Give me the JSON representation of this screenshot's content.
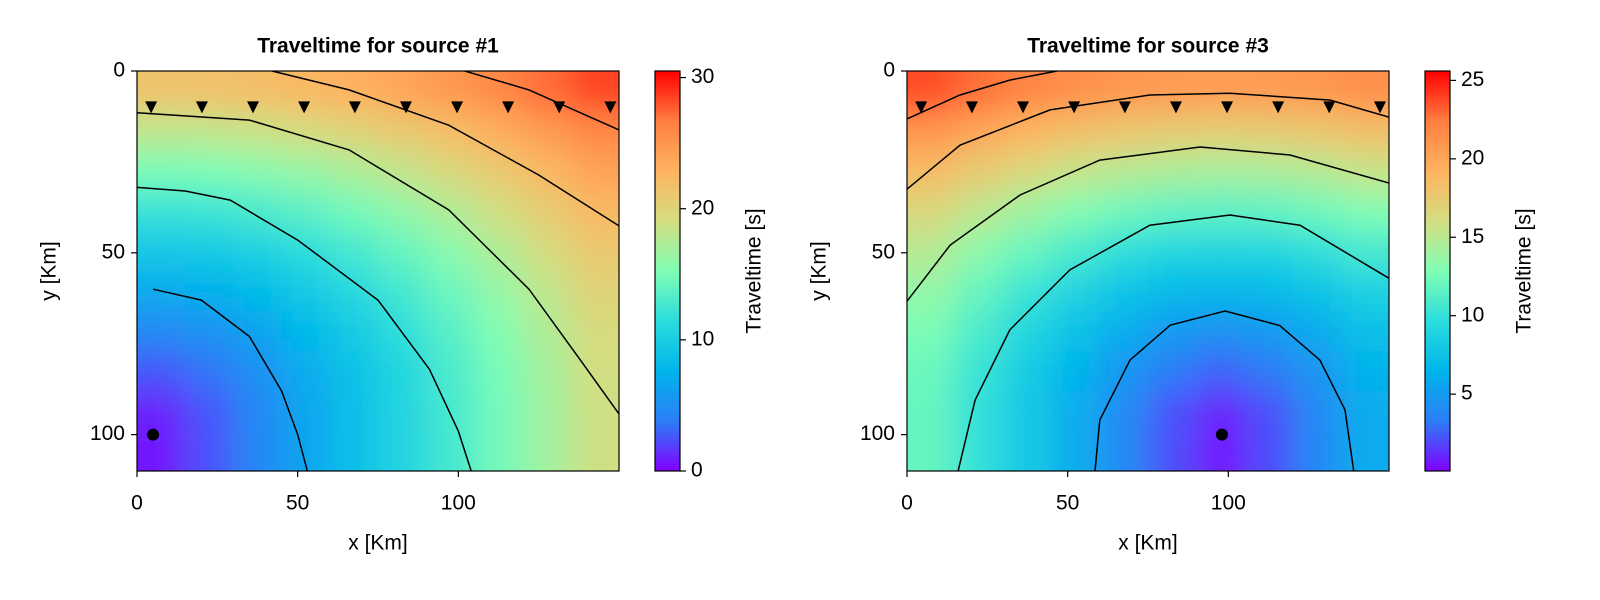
{
  "chart_data": [
    {
      "type": "heatmap",
      "title": "Traveltime for source #1",
      "xlabel": "x [Km]",
      "ylabel": "y [Km]",
      "colorbar_label": "Traveltime [s]",
      "xlim": [
        0,
        150
      ],
      "ylim": [
        110,
        0
      ],
      "xticks": [
        0,
        50,
        100
      ],
      "yticks": [
        0,
        50,
        100
      ],
      "clim": [
        0,
        30.5
      ],
      "cticks": [
        0,
        10,
        20,
        30
      ],
      "colormap": [
        "#8000ff",
        "#2c7ef7",
        "#00b5eb",
        "#2adddd",
        "#80ffb4",
        "#d4dd80",
        "#ffb360",
        "#ff7e41",
        "#ff0000"
      ],
      "x": [
        7.5,
        22.5,
        37.5,
        52.5,
        67.5,
        82.5,
        97.5,
        112.5,
        127.5,
        142.5
      ],
      "y": [
        5.5,
        16.5,
        27.5,
        38.5,
        49.5,
        60.5,
        71.5,
        82.5,
        93.5,
        104.5
      ],
      "z": [
        [
          21.4,
          21.6,
          21.9,
          22.4,
          23.1,
          23.9,
          24.9,
          26.0,
          27.2,
          28.5
        ],
        [
          18.1,
          18.2,
          18.6,
          19.2,
          20.0,
          20.9,
          22.0,
          23.3,
          24.6,
          26.0
        ],
        [
          14.9,
          15.1,
          15.6,
          16.3,
          17.2,
          18.3,
          19.5,
          20.9,
          22.4,
          24.0
        ],
        [
          12.0,
          12.2,
          12.8,
          13.7,
          14.7,
          16.0,
          17.4,
          19.0,
          20.6,
          22.3
        ],
        [
          9.3,
          9.6,
          10.3,
          11.4,
          12.7,
          14.1,
          15.7,
          17.4,
          19.2,
          21.0
        ],
        [
          6.9,
          7.3,
          8.2,
          9.5,
          11.0,
          12.6,
          14.4,
          16.2,
          18.1,
          20.0
        ],
        [
          4.7,
          5.2,
          6.4,
          8.0,
          9.7,
          11.6,
          13.5,
          15.4,
          17.4,
          19.3
        ],
        [
          2.7,
          3.6,
          5.2,
          7.0,
          8.9,
          10.9,
          12.9,
          14.9,
          16.9,
          19.0
        ],
        [
          1.0,
          2.6,
          4.5,
          6.6,
          8.6,
          10.6,
          12.7,
          14.7,
          16.7,
          18.8
        ],
        [
          0.7,
          2.5,
          4.5,
          6.5,
          8.6,
          10.6,
          12.6,
          14.7,
          16.7,
          18.8
        ]
      ],
      "contours": [
        {
          "x": [
            5,
            20,
            35,
            45,
            50,
            53
          ],
          "y": [
            60,
            63,
            73,
            88,
            100,
            110
          ]
        },
        {
          "x": [
            0,
            15,
            29,
            50,
            75,
            91,
            100,
            104
          ],
          "y": [
            32,
            33,
            35.5,
            46.5,
            63,
            82,
            99,
            110
          ]
        },
        {
          "x": [
            0,
            35,
            66,
            97,
            122,
            138,
            150
          ],
          "y": [
            11.5,
            13.5,
            21.7,
            38.2,
            60,
            79.5,
            94.3
          ]
        },
        {
          "x": [
            42,
            66,
            97,
            125,
            150
          ],
          "y": [
            0,
            5.2,
            14.9,
            28.6,
            42.6
          ]
        },
        {
          "x": [
            102,
            122,
            150
          ],
          "y": [
            0,
            5.2,
            16.2
          ]
        }
      ],
      "receivers": {
        "x": [
          4.4,
          20.2,
          36.1,
          52,
          67.8,
          83.7,
          99.6,
          115.5,
          131.4,
          147.3
        ],
        "y": [
          10,
          10,
          10,
          10,
          10,
          10,
          10,
          10,
          10,
          10
        ]
      },
      "source": {
        "x": 5,
        "y": 100
      }
    },
    {
      "type": "heatmap",
      "title": "Traveltime for source #3",
      "xlabel": "x [Km]",
      "ylabel": "y [Km]",
      "colorbar_label": "Traveltime [s]",
      "xlim": [
        0,
        150
      ],
      "ylim": [
        110,
        0
      ],
      "xticks": [
        0,
        50,
        100
      ],
      "yticks": [
        0,
        50,
        100
      ],
      "clim": [
        0.1,
        25.6
      ],
      "cticks": [
        5,
        10,
        15,
        20,
        25
      ],
      "colormap": [
        "#8000ff",
        "#2c7ef7",
        "#00b5eb",
        "#2adddd",
        "#80ffb4",
        "#d4dd80",
        "#ffb360",
        "#ff7e41",
        "#ff0000"
      ],
      "x": [
        7.5,
        22.5,
        37.5,
        52.5,
        67.5,
        82.5,
        97.5,
        112.5,
        127.5,
        142.5
      ],
      "y": [
        5.5,
        16.5,
        27.5,
        38.5,
        49.5,
        60.5,
        71.5,
        82.5,
        93.5,
        104.5
      ],
      "z": [
        [
          23.7,
          22.8,
          22.0,
          21.4,
          20.9,
          20.7,
          20.6,
          20.7,
          20.9,
          21.4
        ],
        [
          21.0,
          20.0,
          19.1,
          18.3,
          17.8,
          17.4,
          17.3,
          17.4,
          17.8,
          18.3
        ],
        [
          18.6,
          17.4,
          16.4,
          15.5,
          14.9,
          14.5,
          14.3,
          14.4,
          14.8,
          15.5
        ],
        [
          16.5,
          15.2,
          14.0,
          13.0,
          12.2,
          11.7,
          11.5,
          11.7,
          12.2,
          12.9
        ],
        [
          14.9,
          13.3,
          12.0,
          10.8,
          9.8,
          9.2,
          9.0,
          9.2,
          9.8,
          10.7
        ],
        [
          13.6,
          11.9,
          10.3,
          8.9,
          7.7,
          6.9,
          6.6,
          6.9,
          7.7,
          8.8
        ],
        [
          12.7,
          10.9,
          9.1,
          7.5,
          6.0,
          4.9,
          4.5,
          4.9,
          5.9,
          7.3
        ],
        [
          12.1,
          10.2,
          8.3,
          6.5,
          4.7,
          3.3,
          2.6,
          3.2,
          4.6,
          6.4
        ],
        [
          11.9,
          9.9,
          8.0,
          6.0,
          4.1,
          2.2,
          0.9,
          2.1,
          4.0,
          5.9
        ],
        [
          11.9,
          9.9,
          8.0,
          6.0,
          4.0,
          2.1,
          0.6,
          2.0,
          3.9,
          5.9
        ]
      ],
      "contours": [
        {
          "x": [
            58.5,
            60,
            69.4,
            81.9,
            99,
            116,
            128.5,
            136.3,
            139
          ],
          "y": [
            110,
            96,
            79.5,
            69.9,
            66,
            70,
            79.5,
            93.2,
            110
          ]
        },
        {
          "x": [
            15.9,
            21.2,
            32,
            50.7,
            75.6,
            100.5,
            122.3,
            150
          ],
          "y": [
            110,
            90.5,
            71.2,
            54.7,
            42.4,
            39.6,
            42.4,
            57
          ]
        },
        {
          "x": [
            0,
            13.4,
            35.2,
            60,
            91.2,
            119.2,
            150
          ],
          "y": [
            63.3,
            47.9,
            34.1,
            24.5,
            20.9,
            23.1,
            30.8
          ]
        },
        {
          "x": [
            0,
            16.5,
            44.5,
            75.6,
            100.5,
            131.7,
            150
          ],
          "y": [
            32.5,
            20.4,
            10.7,
            6.6,
            6.1,
            8,
            12.7
          ]
        },
        {
          "x": [
            0,
            16.5,
            32,
            46.7
          ],
          "y": [
            13.2,
            6.6,
            2.5,
            0
          ]
        }
      ],
      "receivers": {
        "x": [
          4.4,
          20.2,
          36.1,
          52,
          67.8,
          83.7,
          99.6,
          115.5,
          131.4,
          147.2
        ],
        "y": [
          10,
          10,
          10,
          10,
          10,
          10,
          10,
          10,
          10,
          10
        ]
      },
      "source": {
        "x": 98,
        "y": 100
      }
    }
  ]
}
